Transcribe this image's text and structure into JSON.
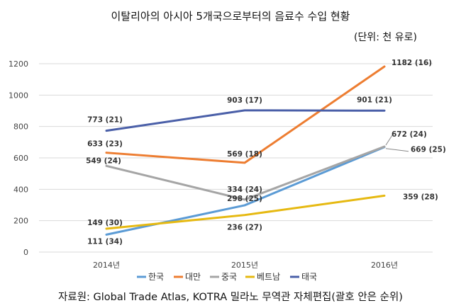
{
  "title": "이탈리아의 아시아 5개국으로부터의 음료수 수입 현황",
  "unit_note": "(단위: 천 유로)",
  "source": "자료원: Global Trade Atlas, KOTRA 밀라노 무역관 자체편집(괄호 안은 순위)",
  "chart_data": {
    "type": "line",
    "categories": [
      "2014년",
      "2015년",
      "2016년"
    ],
    "ylim": [
      0,
      1200
    ],
    "yticks": [
      "0",
      "200",
      "400",
      "600",
      "800",
      "1000",
      "1200"
    ],
    "grid": true,
    "legend_position": "bottom",
    "series": [
      {
        "name": "한국",
        "color": "#5b9bd5",
        "values": [
          111,
          298,
          669
        ],
        "labels": [
          "111 (34)",
          "298 (25)",
          "669 (25)"
        ]
      },
      {
        "name": "대만",
        "color": "#ed7d31",
        "values": [
          633,
          569,
          1182
        ],
        "labels": [
          "633 (23)",
          "569 (18)",
          "1182 (16)"
        ]
      },
      {
        "name": "중국",
        "color": "#a5a5a5",
        "values": [
          549,
          334,
          672
        ],
        "labels": [
          "549 (24)",
          "334 (24)",
          "672 (24)"
        ]
      },
      {
        "name": "베트남",
        "color": "#e6b911",
        "values": [
          149,
          236,
          359
        ],
        "labels": [
          "149 (30)",
          "236 (27)",
          "359 (28)"
        ]
      },
      {
        "name": "태국",
        "color": "#4a5fa8",
        "values": [
          773,
          903,
          901
        ],
        "labels": [
          "773 (21)",
          "903 (17)",
          "901 (21)"
        ]
      }
    ]
  }
}
